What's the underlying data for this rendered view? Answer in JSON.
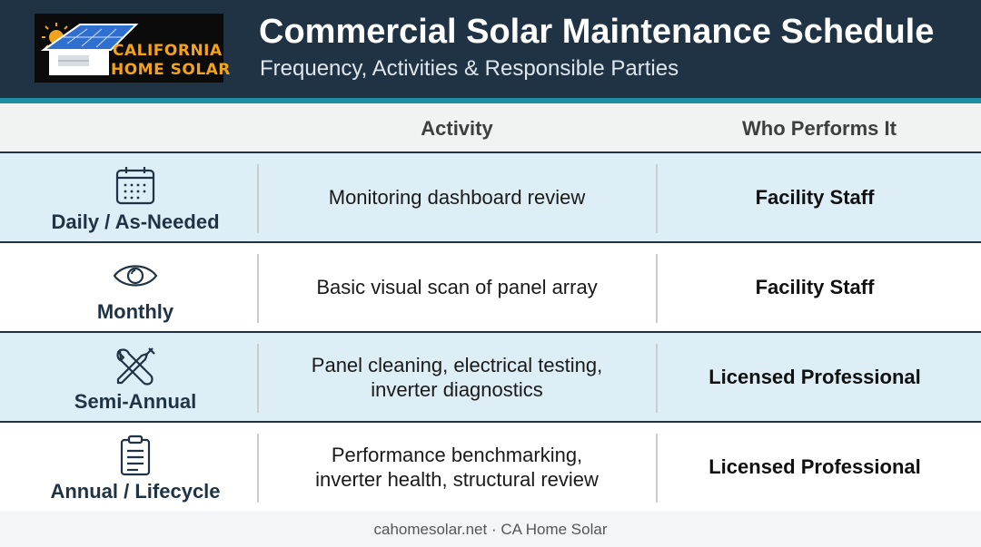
{
  "header": {
    "logo_line1": "CALIFORNIA",
    "logo_line2": "HOME SOLAR",
    "title": "Commercial Solar Maintenance Schedule",
    "subtitle": "Frequency, Activities & Responsible Parties"
  },
  "columns": {
    "frequency": "",
    "activity": "Activity",
    "who": "Who Performs It"
  },
  "rows": [
    {
      "frequency": "Daily / As-Needed",
      "icon": "calendar-icon",
      "activity_lines": [
        "Monitoring dashboard review"
      ],
      "who": "Facility Staff"
    },
    {
      "frequency": "Monthly",
      "icon": "eye-icon",
      "activity_lines": [
        "Basic visual scan of panel array"
      ],
      "who": "Facility Staff"
    },
    {
      "frequency": "Semi-Annual",
      "icon": "tools-icon",
      "activity_lines": [
        "Panel cleaning, electrical testing,",
        "inverter diagnostics"
      ],
      "who": "Licensed Professional"
    },
    {
      "frequency": "Annual / Lifecycle",
      "icon": "clipboard-icon",
      "activity_lines": [
        "Performance benchmarking,",
        "inverter health, structural review"
      ],
      "who": "Licensed Professional"
    }
  ],
  "footer": "cahomesolar.net · CA Home Solar",
  "colors": {
    "header_bg": "#1f3344",
    "accent_stripe": "#1e8ea3",
    "row_shaded": "#ddeef7",
    "logo_text": "#f3a21b"
  }
}
